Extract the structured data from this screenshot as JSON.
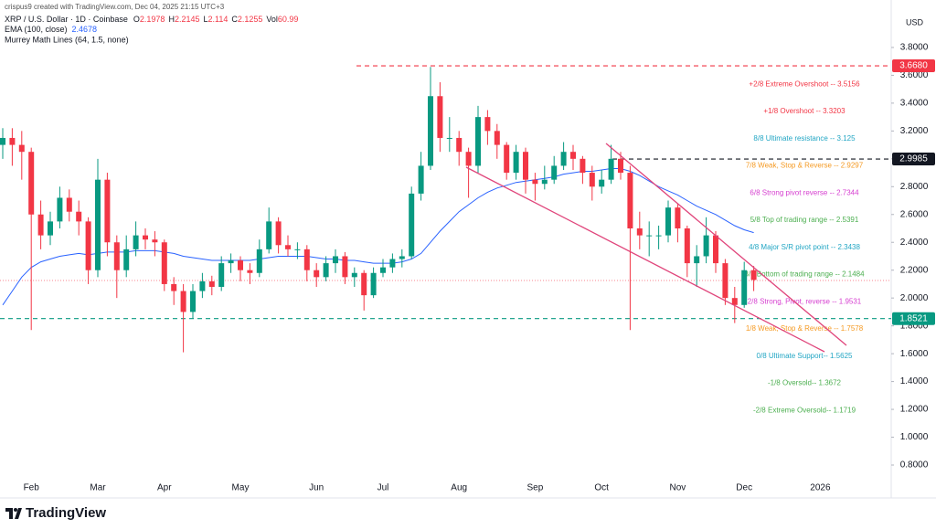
{
  "chart_data": {
    "type": "candlestick",
    "attribution": "crispus9 created with TradingView.com, Dec 04, 2025 21:15 UTC+3",
    "title": "XRP / U.S. Dollar · 1D · Coinbase",
    "quote": [
      {
        "label": "O",
        "value": 2.1978
      },
      {
        "label": "H",
        "value": 2.2145
      },
      {
        "label": "L",
        "value": 2.114
      },
      {
        "label": "C",
        "value": 2.1255
      },
      {
        "label": "Vol",
        "value": 60.99
      }
    ],
    "currency": "USD",
    "brand": "TradingView",
    "categories": [
      null,
      null,
      null,
      "Feb",
      null,
      null,
      null,
      null,
      null,
      null,
      "Mar",
      null,
      null,
      null,
      null,
      null,
      null,
      "Apr",
      null,
      null,
      null,
      null,
      null,
      null,
      null,
      "May",
      null,
      null,
      null,
      null,
      null,
      null,
      null,
      "Jun",
      null,
      null,
      null,
      null,
      null,
      null,
      "Jul",
      null,
      null,
      null,
      null,
      null,
      null,
      null,
      "Aug",
      null,
      null,
      null,
      null,
      null,
      null,
      null,
      "Sep",
      null,
      null,
      null,
      null,
      null,
      null,
      "Oct",
      null,
      null,
      null,
      null,
      null,
      null,
      null,
      "Nov",
      null,
      null,
      null,
      null,
      null,
      null,
      "Dec",
      null,
      null,
      null,
      null,
      null,
      null,
      null,
      "2026",
      null,
      null,
      null,
      null,
      null,
      null,
      null
    ],
    "open": [
      3.1,
      3.15,
      3.1,
      3.05,
      2.6,
      2.45,
      2.55,
      2.72,
      2.62,
      2.55,
      2.2,
      2.85,
      2.4,
      2.2,
      2.35,
      2.45,
      2.42,
      2.4,
      2.1,
      2.05,
      1.9,
      2.05,
      2.12,
      2.08,
      2.25,
      2.27,
      2.2,
      2.18,
      2.35,
      2.55,
      2.38,
      2.35,
      2.35,
      2.2,
      2.15,
      2.25,
      2.3,
      2.15,
      2.18,
      2.02,
      2.18,
      2.22,
      2.28,
      2.3,
      2.75,
      2.95,
      3.45,
      3.15,
      3.15,
      3.05,
      2.95,
      3.3,
      3.2,
      3.1,
      2.9,
      3.05,
      2.85,
      2.82,
      2.85,
      2.95,
      3.05,
      3.0,
      2.9,
      2.8,
      2.85,
      3.0,
      2.9,
      2.5,
      2.45,
      2.45,
      2.45,
      2.65,
      2.5,
      2.25,
      2.3,
      2.45,
      2.25,
      2.0,
      1.95,
      2.2,
      null,
      null,
      null,
      null,
      null,
      null,
      null,
      null,
      null,
      null,
      null,
      null,
      null,
      null
    ],
    "high": [
      3.22,
      3.22,
      3.2,
      3.08,
      2.7,
      2.62,
      2.8,
      2.78,
      2.7,
      2.58,
      3.0,
      2.9,
      2.45,
      2.45,
      2.55,
      2.5,
      2.48,
      2.42,
      2.15,
      2.1,
      2.1,
      2.18,
      2.16,
      2.3,
      2.32,
      2.3,
      2.25,
      2.42,
      2.65,
      2.58,
      2.45,
      2.4,
      2.38,
      2.25,
      2.3,
      2.35,
      2.33,
      2.22,
      2.2,
      2.22,
      2.28,
      2.32,
      2.35,
      2.8,
      3.05,
      3.66,
      3.55,
      3.3,
      3.2,
      3.08,
      3.38,
      3.35,
      3.25,
      3.12,
      3.1,
      3.08,
      2.9,
      2.95,
      3.02,
      3.12,
      3.1,
      3.02,
      2.95,
      2.92,
      3.1,
      3.05,
      2.95,
      2.62,
      2.55,
      2.52,
      2.7,
      2.68,
      2.52,
      2.38,
      2.58,
      2.48,
      2.28,
      2.08,
      2.26,
      2.23,
      null,
      null,
      null,
      null,
      null,
      null,
      null,
      null,
      null,
      null,
      null,
      null,
      null,
      null
    ],
    "low": [
      3.0,
      2.95,
      2.85,
      1.77,
      2.35,
      2.38,
      2.5,
      2.55,
      2.45,
      2.1,
      2.15,
      2.3,
      2.0,
      2.15,
      2.3,
      2.35,
      2.3,
      2.05,
      1.95,
      1.61,
      1.85,
      2.0,
      2.02,
      2.05,
      2.18,
      2.12,
      2.1,
      2.15,
      2.32,
      2.32,
      2.3,
      2.28,
      2.12,
      2.08,
      2.12,
      2.18,
      2.1,
      2.08,
      1.91,
      2.0,
      2.15,
      2.18,
      2.22,
      2.28,
      2.7,
      2.92,
      3.05,
      3.05,
      2.95,
      2.72,
      2.9,
      3.1,
      3.0,
      2.85,
      2.85,
      2.75,
      2.7,
      2.78,
      2.82,
      2.92,
      2.92,
      2.82,
      2.7,
      2.75,
      2.82,
      2.85,
      1.77,
      2.35,
      2.3,
      2.35,
      2.4,
      2.4,
      2.15,
      2.08,
      2.25,
      2.18,
      1.95,
      1.82,
      1.93,
      2.05,
      null,
      null,
      null,
      null,
      null,
      null,
      null,
      null,
      null,
      null,
      null,
      null,
      null,
      null
    ],
    "close": [
      3.15,
      3.1,
      3.05,
      2.6,
      2.45,
      2.55,
      2.72,
      2.62,
      2.55,
      2.2,
      2.85,
      2.4,
      2.2,
      2.35,
      2.45,
      2.42,
      2.4,
      2.1,
      2.05,
      1.9,
      2.05,
      2.12,
      2.08,
      2.25,
      2.27,
      2.2,
      2.18,
      2.35,
      2.55,
      2.38,
      2.35,
      2.35,
      2.2,
      2.15,
      2.25,
      2.3,
      2.15,
      2.18,
      2.02,
      2.18,
      2.22,
      2.28,
      2.3,
      2.75,
      2.95,
      3.45,
      3.15,
      3.15,
      3.05,
      2.95,
      3.3,
      3.2,
      3.1,
      2.9,
      3.05,
      2.85,
      2.82,
      2.85,
      2.95,
      3.05,
      3.0,
      2.9,
      2.8,
      2.85,
      3.0,
      2.9,
      2.5,
      2.45,
      2.45,
      2.45,
      2.65,
      2.5,
      2.25,
      2.3,
      2.45,
      2.25,
      2.0,
      1.95,
      2.2,
      2.13,
      null,
      null,
      null,
      null,
      null,
      null,
      null,
      null,
      null,
      null,
      null,
      null,
      null,
      null
    ],
    "up_color": "#089981",
    "down_color": "#f23645",
    "ema": {
      "name": "EMA (100, close)",
      "last_value": 2.4678,
      "color": "#2962ff",
      "values": [
        1.95,
        2.05,
        2.15,
        2.22,
        2.26,
        2.28,
        2.3,
        2.31,
        2.32,
        2.31,
        2.32,
        2.33,
        2.33,
        2.33,
        2.34,
        2.34,
        2.34,
        2.33,
        2.32,
        2.3,
        2.29,
        2.28,
        2.27,
        2.27,
        2.27,
        2.27,
        2.27,
        2.28,
        2.29,
        2.3,
        2.3,
        2.3,
        2.3,
        2.29,
        2.28,
        2.28,
        2.27,
        2.27,
        2.26,
        2.25,
        2.25,
        2.25,
        2.26,
        2.28,
        2.32,
        2.4,
        2.48,
        2.55,
        2.62,
        2.67,
        2.72,
        2.76,
        2.79,
        2.81,
        2.83,
        2.84,
        2.85,
        2.86,
        2.87,
        2.89,
        2.9,
        2.91,
        2.91,
        2.92,
        2.93,
        2.93,
        2.91,
        2.88,
        2.84,
        2.8,
        2.77,
        2.74,
        2.7,
        2.66,
        2.63,
        2.6,
        2.56,
        2.52,
        2.49,
        2.47,
        null,
        null,
        null,
        null,
        null,
        null,
        null,
        null,
        null,
        null,
        null,
        null,
        null,
        null
      ]
    },
    "murrey": {
      "name": "Murrey Math Lines (64, 1.5, none)",
      "levels": [
        {
          "text": "+2/8 Extreme Overshoot -- 3.5156",
          "value": 3.5156,
          "color": "#f23645"
        },
        {
          "text": "+1/8 Overshoot -- 3.3203",
          "value": 3.3203,
          "color": "#f23645"
        },
        {
          "text": "8/8 Ultimate resistance -- 3.125",
          "value": 3.125,
          "color": "#22a6c4"
        },
        {
          "text": "7/8 Weak, Stop & Reverse -- 2.9297",
          "value": 2.9297,
          "color": "#f59a23"
        },
        {
          "text": "6/8 Strong pivot reverse -- 2.7344",
          "value": 2.7344,
          "color": "#d63fd0"
        },
        {
          "text": "5/8 Top of trading range -- 2.5391",
          "value": 2.5391,
          "color": "#4caf50"
        },
        {
          "text": "4/8 Major S/R pivot point -- 2.3438",
          "value": 2.3438,
          "color": "#22a6c4"
        },
        {
          "text": "3/8 Bottom of trading range -- 2.1484",
          "value": 2.1484,
          "color": "#4caf50"
        },
        {
          "text": "2/8 Strong, Pivot, reverse -- 1.9531",
          "value": 1.9531,
          "color": "#d63fd0"
        },
        {
          "text": "1/8 Weak, Stop & Reverse -- 1.7578",
          "value": 1.7578,
          "color": "#f59a23"
        },
        {
          "text": "0/8 Ultimate Support-- 1.5625",
          "value": 1.5625,
          "color": "#22a6c4"
        },
        {
          "text": "-1/8 Oversold-- 1.3672",
          "value": 1.3672,
          "color": "#4caf50"
        },
        {
          "text": "-2/8 Extreme Oversold-- 1.1719",
          "value": 1.1719,
          "color": "#4caf50"
        }
      ]
    },
    "price_lines": [
      {
        "value": 3.668,
        "label": "3.6680",
        "color": "#f23645"
      },
      {
        "value": 2.9985,
        "label": "2.9985",
        "color": "#131722"
      },
      {
        "value": 1.8521,
        "label": "1.8521",
        "color": "#089981"
      }
    ],
    "ylim": [
      0.695,
      3.944
    ],
    "yticks": [
      {
        "value": 0.8,
        "label": "0.8000"
      },
      {
        "value": 1.0,
        "label": "1.0000"
      },
      {
        "value": 1.2,
        "label": "1.2000"
      },
      {
        "value": 1.4,
        "label": "1.4000"
      },
      {
        "value": 1.6,
        "label": "1.6000"
      },
      {
        "value": 1.8,
        "label": "1.8000"
      },
      {
        "value": 2.0,
        "label": "2.0000"
      },
      {
        "value": 2.2,
        "label": "2.2000"
      },
      {
        "value": 2.4,
        "label": "2.4000"
      },
      {
        "value": 2.6,
        "label": "2.6000"
      },
      {
        "value": 2.8,
        "label": "2.8000"
      },
      {
        "value": 3.0,
        "label": "3.0000"
      },
      {
        "value": 3.2,
        "label": "3.2000"
      },
      {
        "value": 3.4,
        "label": "3.4000"
      },
      {
        "value": 3.6,
        "label": "3.6000"
      },
      {
        "value": 3.8,
        "label": "3.8000"
      }
    ],
    "grid": false
  }
}
